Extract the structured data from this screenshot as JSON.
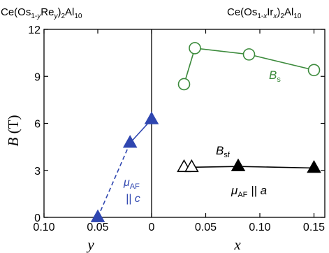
{
  "chart_data": {
    "type": "scatter",
    "ylabel": {
      "main": "B",
      "unit": " (T)"
    },
    "ylim": [
      0,
      12
    ],
    "yticks": [
      "0",
      "3",
      "6",
      "9",
      "12"
    ],
    "y_tick_values": [
      0,
      3,
      6,
      9,
      12
    ],
    "panels": [
      {
        "id": "left",
        "title": {
          "pre": "Ce(Os",
          "sub1": "1-",
          "var1": "y",
          "mid": "Re",
          "var2": "y",
          "close": ")",
          "sub2": "2",
          "post": "Al",
          "sub3": "10"
        },
        "xlabel": "y",
        "xlim": [
          0.1,
          0.0
        ],
        "xticks": [
          "0.10",
          "0.05",
          "0"
        ],
        "x_tick_values": [
          0.1,
          0.05,
          0.0
        ],
        "series": [
          {
            "name": "μAF || c",
            "marker": "triangle-filled",
            "color": "#2f46b0",
            "points": [
              {
                "x": 0.05,
                "y": 0.0
              },
              {
                "x": 0.02,
                "y": 4.75
              },
              {
                "x": 0.0,
                "y": 6.25
              }
            ],
            "line_style_by_segment": [
              "dashed",
              "solid"
            ]
          }
        ],
        "annotations": [
          {
            "mu": "μ",
            "sub": "AF",
            "text2": "|| c",
            "color": "#2f46b0"
          }
        ]
      },
      {
        "id": "right",
        "title": {
          "pre": "Ce(Os",
          "sub1": "1-",
          "var1": "x",
          "mid": "Ir",
          "var2": "x",
          "close": ")",
          "sub2": "2",
          "post": "Al",
          "sub3": "10"
        },
        "xlabel": "x",
        "xlim": [
          0.0,
          0.16
        ],
        "xticks": [
          "0.05",
          "0.10",
          "0.15"
        ],
        "x_tick_values": [
          0.05,
          0.1,
          0.15
        ],
        "series": [
          {
            "name": "Bs",
            "marker": "circle-open",
            "color": "#3b8a3b",
            "points": [
              {
                "x": 0.03,
                "y": 8.5
              },
              {
                "x": 0.04,
                "y": 10.8
              },
              {
                "x": 0.09,
                "y": 10.4
              },
              {
                "x": 0.15,
                "y": 9.4
              }
            ]
          },
          {
            "name": "Bsf (μAF || a)",
            "marker": "triangle-open",
            "color": "#000000",
            "points": [
              {
                "x": 0.03,
                "y": 3.2
              },
              {
                "x": 0.037,
                "y": 3.2
              }
            ]
          },
          {
            "name": "Bsf filled",
            "marker": "triangle-filled",
            "color": "#000000",
            "points": [
              {
                "x": 0.08,
                "y": 3.25
              },
              {
                "x": 0.15,
                "y": 3.15
              }
            ]
          }
        ],
        "annotations": [
          {
            "main": "B",
            "sub": "s",
            "color": "#3b8a3b"
          },
          {
            "main": "B",
            "sub": "sf",
            "color": "#000000"
          },
          {
            "mu": "μ",
            "sub": "AF",
            "text2": "|| a",
            "color": "#000000"
          }
        ]
      }
    ]
  }
}
